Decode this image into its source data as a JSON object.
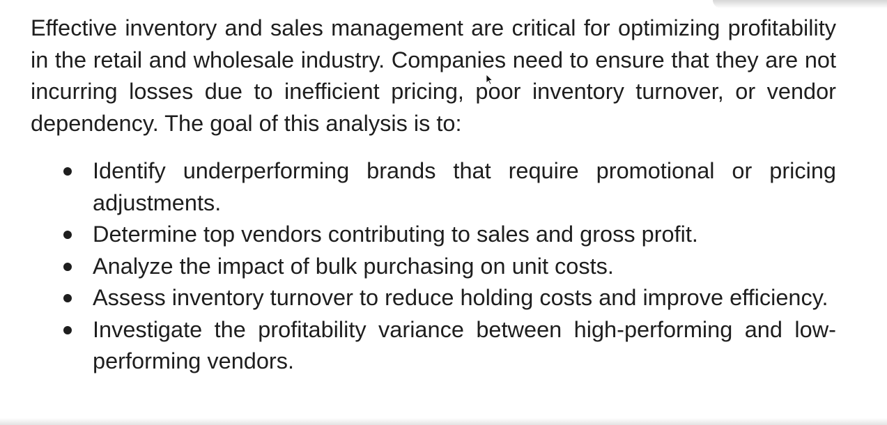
{
  "document": {
    "intro": "Effective inventory and sales management are critical for optimizing profitability in the retail and wholesale industry. Companies need to ensure that they are not incurring losses due to inefficient pricing, poor inventory turnover, or vendor dependency. The goal of this analysis is to:",
    "goals": [
      "Identify underperforming brands that require promotional or pricing adjustments.",
      "Determine top vendors contributing to sales and gross profit.",
      "Analyze the impact of bulk purchasing on unit costs.",
      "Assess inventory turnover to reduce holding costs and improve efficiency.",
      "Investigate the profitability variance between high-performing and low-performing vendors."
    ]
  },
  "icons": {
    "cursor": "mouse-pointer-icon",
    "bullet": "bullet-dot-icon"
  },
  "colors": {
    "text": "#1e1e1e",
    "background": "#ffffff"
  }
}
